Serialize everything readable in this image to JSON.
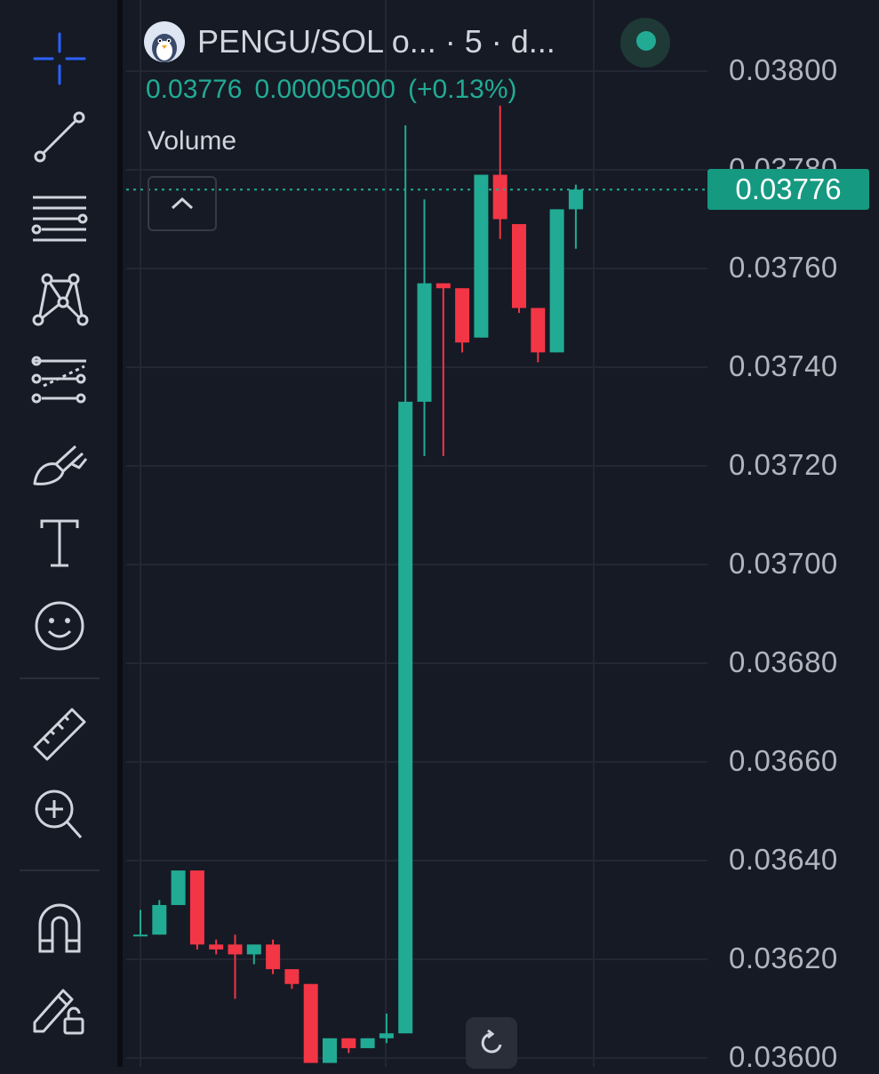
{
  "header": {
    "symbol_text": "PENGU/SOL o...  · 5 · d...",
    "ohlc_price": "0.03776",
    "ohlc_change": "0.00005000",
    "ohlc_change_pct": "(+0.13%)",
    "volume_label": "Volume"
  },
  "price_axis": {
    "labels": [
      "0.03800",
      "0.03780",
      "0.03760",
      "0.03740",
      "0.03720",
      "0.03700",
      "0.03680",
      "0.03660",
      "0.03640",
      "0.03620",
      "0.03600"
    ],
    "current_price": "0.03776"
  },
  "toolbar": {
    "tools": [
      "crosshair-icon",
      "trend-line-icon",
      "fib-retracement-icon",
      "pattern-icon",
      "prediction-icon",
      "brush-icon",
      "text-icon",
      "emoji-icon",
      "ruler-icon",
      "zoom-in-icon",
      "magnet-icon",
      "lock-drawings-icon"
    ]
  },
  "colors": {
    "up": "#22ab94",
    "down": "#f23645",
    "background": "#161a25",
    "accent": "#2962ff"
  },
  "chart_data": {
    "type": "candlestick",
    "title": "PENGU/SOL",
    "interval": "5",
    "ylim": [
      0.036,
      0.038
    ],
    "candles": [
      {
        "o": 0.03625,
        "h": 0.0363,
        "l": 0.03625,
        "c": 0.03625
      },
      {
        "o": 0.03625,
        "h": 0.03632,
        "l": 0.03625,
        "c": 0.03631
      },
      {
        "o": 0.03631,
        "h": 0.03638,
        "l": 0.03631,
        "c": 0.03638
      },
      {
        "o": 0.03638,
        "h": 0.03638,
        "l": 0.03622,
        "c": 0.03623
      },
      {
        "o": 0.03623,
        "h": 0.03624,
        "l": 0.03621,
        "c": 0.03622
      },
      {
        "o": 0.03623,
        "h": 0.03625,
        "l": 0.03612,
        "c": 0.03621
      },
      {
        "o": 0.03621,
        "h": 0.03623,
        "l": 0.03619,
        "c": 0.03623
      },
      {
        "o": 0.03623,
        "h": 0.03624,
        "l": 0.03617,
        "c": 0.03618
      },
      {
        "o": 0.03618,
        "h": 0.03618,
        "l": 0.03614,
        "c": 0.03615
      },
      {
        "o": 0.03615,
        "h": 0.03615,
        "l": 0.03599,
        "c": 0.03599
      },
      {
        "o": 0.03599,
        "h": 0.03604,
        "l": 0.03599,
        "c": 0.03604
      },
      {
        "o": 0.03604,
        "h": 0.03604,
        "l": 0.03601,
        "c": 0.03602
      },
      {
        "o": 0.03602,
        "h": 0.03604,
        "l": 0.03602,
        "c": 0.03604
      },
      {
        "o": 0.03604,
        "h": 0.03609,
        "l": 0.03603,
        "c": 0.03605
      },
      {
        "o": 0.03605,
        "h": 0.03789,
        "l": 0.03605,
        "c": 0.03733
      },
      {
        "o": 0.03733,
        "h": 0.03774,
        "l": 0.03722,
        "c": 0.03757
      },
      {
        "o": 0.03757,
        "h": 0.03757,
        "l": 0.03722,
        "c": 0.03756
      },
      {
        "o": 0.03756,
        "h": 0.03756,
        "l": 0.03743,
        "c": 0.03745
      },
      {
        "o": 0.03746,
        "h": 0.03779,
        "l": 0.03746,
        "c": 0.03779
      },
      {
        "o": 0.03779,
        "h": 0.03793,
        "l": 0.03766,
        "c": 0.0377
      },
      {
        "o": 0.03769,
        "h": 0.03769,
        "l": 0.03751,
        "c": 0.03752
      },
      {
        "o": 0.03752,
        "h": 0.03752,
        "l": 0.03741,
        "c": 0.03743
      },
      {
        "o": 0.03743,
        "h": 0.03772,
        "l": 0.03743,
        "c": 0.03772
      },
      {
        "o": 0.03772,
        "h": 0.03777,
        "l": 0.03764,
        "c": 0.03776
      }
    ]
  }
}
